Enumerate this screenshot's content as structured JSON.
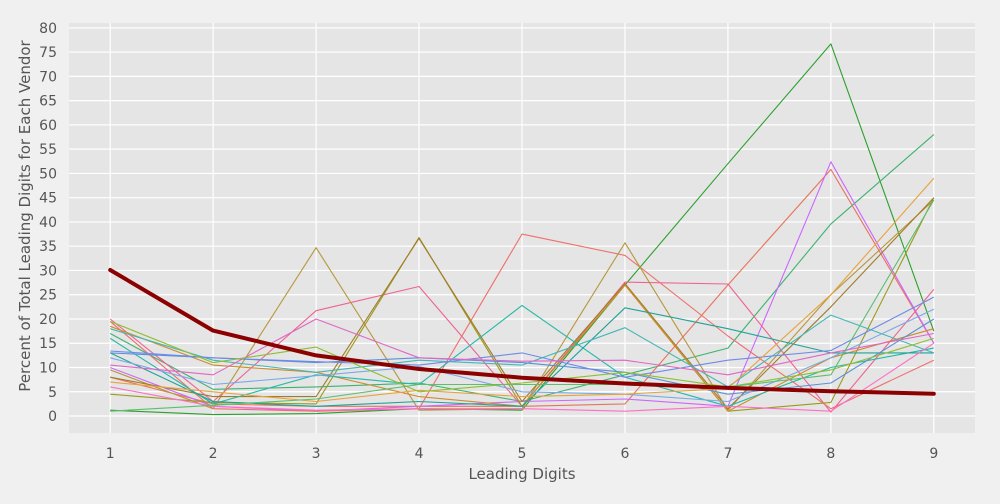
{
  "chart_data": {
    "type": "line",
    "title": "",
    "xlabel": "Leading Digits",
    "ylabel": "Percent of Total Leading Digits for Each Vendor",
    "x": [
      1,
      2,
      3,
      4,
      5,
      6,
      7,
      8,
      9
    ],
    "xlim": [
      0.6,
      9.4
    ],
    "ylim": [
      -3.5,
      81
    ],
    "yticks": [
      0,
      5,
      10,
      15,
      20,
      25,
      30,
      35,
      40,
      45,
      50,
      55,
      60,
      65,
      70,
      75,
      80
    ],
    "grid": true,
    "legend": "none",
    "colors": {
      "background": "#f0f0f0",
      "plot_background": "#e5e5e5",
      "grid": "#ffffff",
      "benford": "#8b0000"
    },
    "series": [
      {
        "color": "#2ca02c",
        "values": [
          1.2,
          0.3,
          0.5,
          1.5,
          1.2,
          27,
          52,
          76.7,
          17.5
        ]
      },
      {
        "color": "#3cb371",
        "values": [
          17,
          5.5,
          6,
          6.8,
          3,
          8.5,
          14,
          39.6,
          58
        ]
      },
      {
        "color": "#e8735a",
        "values": [
          8,
          2.5,
          2,
          2,
          2,
          2.5,
          27,
          50.8,
          15
        ]
      },
      {
        "color": "#cc66ff",
        "values": [
          10,
          2,
          1,
          2,
          3,
          3.5,
          2,
          52.4,
          15
        ]
      },
      {
        "color": "#f06292",
        "values": [
          20,
          3,
          21.7,
          26.7,
          2,
          27.6,
          27.2,
          0.8,
          26.1
        ]
      },
      {
        "color": "#ef6f6c",
        "values": [
          19.5,
          1.5,
          1,
          1.5,
          37.5,
          33.1,
          16.5,
          1.5,
          11.5
        ]
      },
      {
        "color": "#b8963c",
        "values": [
          9.5,
          1.5,
          34.7,
          1.2,
          1.5,
          35.7,
          1.2,
          25,
          44.5
        ]
      },
      {
        "color": "#9c9a1c",
        "values": [
          4.5,
          2.8,
          2.5,
          36.8,
          2,
          27,
          1,
          2.8,
          45
        ]
      },
      {
        "color": "#a07c2a",
        "values": [
          8,
          4,
          4,
          36.6,
          3,
          27.3,
          1.5,
          22.5,
          45
        ]
      },
      {
        "color": "#d08c2e",
        "values": [
          18.5,
          10.5,
          9,
          4,
          2,
          27,
          1,
          12,
          18
        ]
      },
      {
        "color": "#22b8aa",
        "values": [
          16,
          2.5,
          8.5,
          6.5,
          22.8,
          8,
          2,
          10,
          14
        ]
      },
      {
        "color": "#1ea39a",
        "values": [
          13,
          3,
          2,
          3,
          2,
          22.3,
          18,
          13,
          13
        ]
      },
      {
        "color": "#42b7b7",
        "values": [
          18,
          11.5,
          9,
          11.5,
          10.5,
          18.2,
          6,
          20.8,
          13
        ]
      },
      {
        "color": "#5b8fd9",
        "values": [
          13,
          12,
          11,
          12,
          11,
          9,
          4.5,
          6.8,
          20
        ]
      },
      {
        "color": "#6f8ae8",
        "values": [
          13.4,
          12,
          11.2,
          10.5,
          13,
          8,
          11.5,
          13.5,
          24.5
        ]
      },
      {
        "color": "#7aa8e8",
        "values": [
          12,
          6.5,
          8.3,
          10.2,
          5,
          4.5,
          3,
          12,
          22
        ]
      },
      {
        "color": "#e066c5",
        "values": [
          10.5,
          8.5,
          20,
          12,
          11.3,
          11.5,
          8.5,
          13,
          17
        ]
      },
      {
        "color": "#ff6ec7",
        "values": [
          6,
          2,
          1.2,
          1.5,
          1.5,
          1,
          2,
          1,
          15
        ]
      },
      {
        "color": "#e8a23c",
        "values": [
          7,
          5,
          3,
          5.3,
          4,
          4.5,
          5.7,
          25,
          49
        ]
      },
      {
        "color": "#8fbf2e",
        "values": [
          19.5,
          11,
          14.2,
          5,
          6.8,
          9,
          6,
          9.5,
          16
        ]
      },
      {
        "color": "#5bbf70",
        "values": [
          1,
          2.2,
          3.5,
          6.5,
          6.5,
          6.5,
          6,
          8.5,
          44.5
        ]
      }
    ],
    "reference_series": {
      "name": "",
      "color": "#8b0000",
      "values": [
        30.1,
        17.6,
        12.5,
        9.7,
        7.9,
        6.7,
        5.8,
        5.1,
        4.6
      ]
    }
  }
}
